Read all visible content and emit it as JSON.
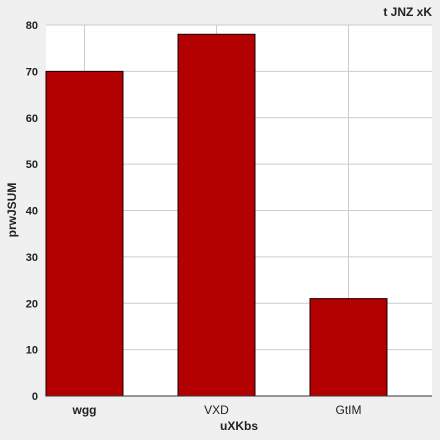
{
  "chart_data": {
    "type": "bar",
    "title": "t JNZ  xK",
    "xlabel": "uXKbs",
    "ylabel": "prwJSUM",
    "categories": [
      "wgg",
      "VXD",
      "GtIM"
    ],
    "values": [
      70,
      78,
      21
    ],
    "ylim": [
      0,
      80
    ],
    "yticks": [
      0,
      10,
      20,
      30,
      40,
      50,
      60,
      70,
      80
    ],
    "grid": true,
    "bar_color": "#b30000",
    "bar_edge_color": "#1a0000",
    "plot_background": "#ffffff",
    "grid_color": "#cccccc"
  }
}
